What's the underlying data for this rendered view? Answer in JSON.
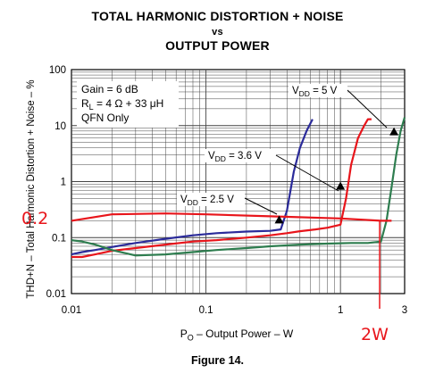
{
  "chart_data": {
    "type": "line",
    "title": "TOTAL HARMONIC DISTORTION + NOISE",
    "title_vs": "vs",
    "subtitle": "OUTPUT POWER",
    "xlabel_prefix": "P",
    "xlabel_sub": "O",
    "xlabel_suffix": " – Output Power – W",
    "ylabel": "THD+N – Total Harmonic Distortion + Noise – %",
    "xscale": "log",
    "yscale": "log",
    "xlim": [
      0.01,
      3
    ],
    "ylim": [
      0.01,
      100
    ],
    "xticks": [
      {
        "value": 0.01,
        "label": "0.01"
      },
      {
        "value": 0.1,
        "label": "0.1"
      },
      {
        "value": 1,
        "label": "1"
      },
      {
        "value": 3,
        "label": "3"
      }
    ],
    "yticks": [
      {
        "value": 0.01,
        "label": "0.01"
      },
      {
        "value": 0.1,
        "label": "0.1"
      },
      {
        "value": 1,
        "label": "1"
      },
      {
        "value": 10,
        "label": "10"
      },
      {
        "value": 100,
        "label": "100"
      }
    ],
    "grid": true,
    "conditions": {
      "gain": "Gain = 6 dB",
      "load_pre": "R",
      "load_sub": "L",
      "load_post": " = 4 Ω + 33 μH",
      "package": "QFN Only"
    },
    "series_colors": [
      "#2b2b9a",
      "#e8151b",
      "#2e7d4f"
    ],
    "series": [
      {
        "label_pre": "V",
        "label_sub": "DD",
        "label_post": " = 2.5 V",
        "color": "#2b2b9a",
        "x": [
          0.01,
          0.012,
          0.015,
          0.02,
          0.03,
          0.05,
          0.08,
          0.12,
          0.2,
          0.3,
          0.36,
          0.4,
          0.45,
          0.5,
          0.56,
          0.62
        ],
        "y": [
          0.05,
          0.055,
          0.06,
          0.068,
          0.08,
          0.095,
          0.11,
          0.12,
          0.128,
          0.132,
          0.14,
          0.3,
          1.5,
          4,
          8,
          13
        ]
      },
      {
        "label_pre": "V",
        "label_sub": "DD",
        "label_post": " = 3.6 V",
        "color": "#e8151b",
        "x": [
          0.01,
          0.012,
          0.015,
          0.02,
          0.03,
          0.05,
          0.08,
          0.12,
          0.2,
          0.3,
          0.4,
          0.5,
          0.65,
          0.8,
          1.0,
          1.1,
          1.2,
          1.35,
          1.5,
          1.6,
          1.7
        ],
        "y": [
          0.045,
          0.045,
          0.05,
          0.058,
          0.065,
          0.075,
          0.085,
          0.09,
          0.1,
          0.11,
          0.12,
          0.13,
          0.14,
          0.15,
          0.17,
          0.5,
          2,
          6,
          10,
          13,
          13
        ]
      },
      {
        "label_pre": "V",
        "label_sub": "DD",
        "label_post": " = 5 V",
        "color": "#2e7d4f",
        "x": [
          0.01,
          0.012,
          0.015,
          0.02,
          0.03,
          0.05,
          0.08,
          0.12,
          0.2,
          0.3,
          0.5,
          0.8,
          1.2,
          1.6,
          2.0,
          2.2,
          2.4,
          2.6,
          2.8,
          3.0
        ],
        "y": [
          0.09,
          0.085,
          0.075,
          0.06,
          0.048,
          0.05,
          0.055,
          0.06,
          0.065,
          0.07,
          0.075,
          0.078,
          0.08,
          0.08,
          0.085,
          0.2,
          0.8,
          3,
          8,
          14
        ]
      },
      {
        "color": "#e8151b",
        "x": [
          0.01,
          0.02,
          0.05,
          0.1,
          0.3,
          1.0,
          2.0,
          2.4
        ],
        "y": [
          0.2,
          0.26,
          0.27,
          0.26,
          0.24,
          0.22,
          0.2,
          0.2
        ]
      }
    ],
    "annotations": [
      {
        "series": 0,
        "text_pre": "V",
        "text_sub": "DD",
        "text_post": " = 2.5 V",
        "point": [
          0.35,
          0.2
        ]
      },
      {
        "series": 1,
        "text_pre": "V",
        "text_sub": "DD",
        "text_post": " = 3.6 V",
        "point": [
          1.0,
          0.8
        ]
      },
      {
        "series": 2,
        "text_pre": "V",
        "text_sub": "DD",
        "text_post": " = 5 V",
        "point": [
          2.5,
          7.5
        ]
      }
    ],
    "handwritten": [
      {
        "text": "0.2",
        "color": "#e8151b"
      },
      {
        "text": "2W",
        "color": "#e8151b"
      }
    ],
    "caption": "Figure 14."
  }
}
